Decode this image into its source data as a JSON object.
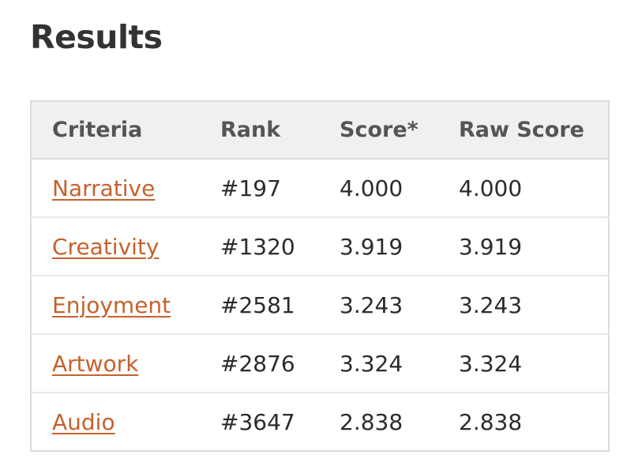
{
  "page": {
    "heading": "Results"
  },
  "table": {
    "headers": {
      "criteria": "Criteria",
      "rank": "Rank",
      "score": "Score*",
      "raw_score": "Raw Score"
    },
    "rows": [
      {
        "criteria": "Narrative",
        "rank": "#197",
        "score": "4.000",
        "raw_score": "4.000"
      },
      {
        "criteria": "Creativity",
        "rank": "#1320",
        "score": "3.919",
        "raw_score": "3.919"
      },
      {
        "criteria": "Enjoyment",
        "rank": "#2581",
        "score": "3.243",
        "raw_score": "3.243"
      },
      {
        "criteria": "Artwork",
        "rank": "#2876",
        "score": "3.324",
        "raw_score": "3.324"
      },
      {
        "criteria": "Audio",
        "rank": "#3647",
        "score": "2.838",
        "raw_score": "2.838"
      }
    ]
  },
  "colors": {
    "link": "#c6612c",
    "header_bg": "#f0f0f0",
    "border": "#dcdcdc",
    "text": "#2b2b2b"
  }
}
